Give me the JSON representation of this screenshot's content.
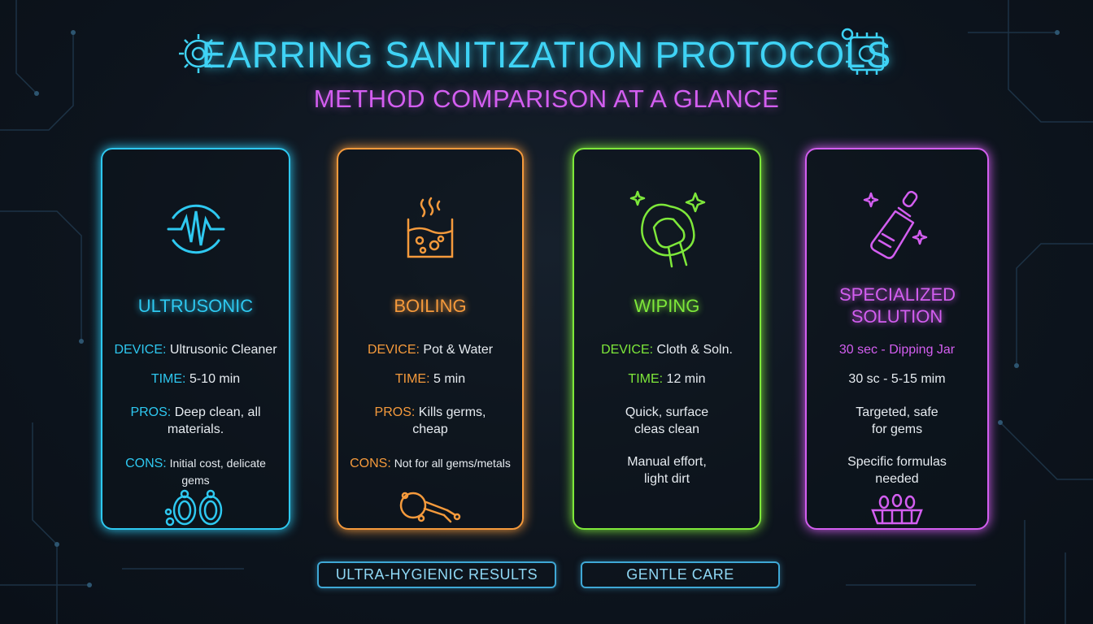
{
  "header": {
    "title": "EARRING SANITIZATION PROTOCOLS",
    "subtitle": "METHOD COMPARISON AT A GLANCE"
  },
  "colors": {
    "ultrasonic": "#2ec8f0",
    "boiling": "#f59a3c",
    "wiping": "#7ee83a",
    "specialized": "#d35ef0"
  },
  "cards": {
    "ultrasonic": {
      "name": "ULTRUSONIC",
      "device_label": "DEVICE:",
      "device_value": "Ultrusonic Cleaner",
      "time_label": "TIME:",
      "time_value": "5-10 min",
      "pros_label": "PROS:",
      "pros_value": "Deep clean, all materials.",
      "cons_label": "CONS:",
      "cons_value": "Initial cost, delicate gems",
      "icon": "ultrasonic-wave-icon",
      "bottom_icon": "hoop-earrings-icon"
    },
    "boiling": {
      "name": "BOILING",
      "device_label": "DEVICE:",
      "device_value": "Pot & Water",
      "time_label": "TIME:",
      "time_value": "5 min",
      "pros_label": "PROS:",
      "pros_value": "Kills germs, cheap",
      "cons_label": "CONS:",
      "cons_value": "Not for all gems/metals",
      "icon": "boiling-pot-icon",
      "bottom_icon": "tongs-icon"
    },
    "wiping": {
      "name": "WIPING",
      "device_label": "DEVICE:",
      "device_value": "Cloth & Soln.",
      "time_label": "TIME:",
      "time_value": "12 min",
      "pros_value": "Quick, surface cleas clean",
      "cons_value": "Manual effort, light dirt",
      "icon": "hand-cloth-icon"
    },
    "specialized": {
      "name": "SPECIALIZED SOLUTION",
      "device_value": "30 sec - Dipping Jar",
      "time_value": "30 sc - 5-15 mim",
      "pros_value": "Targeted, safe for gems",
      "cons_value": "Specific formulas needed",
      "icon": "dropper-bottle-icon",
      "bottom_icon": "jewelry-basket-icon"
    }
  },
  "badges": {
    "left": "ULTRA-HYGIENIC RESULTS",
    "right": "GENTLE CARE"
  }
}
